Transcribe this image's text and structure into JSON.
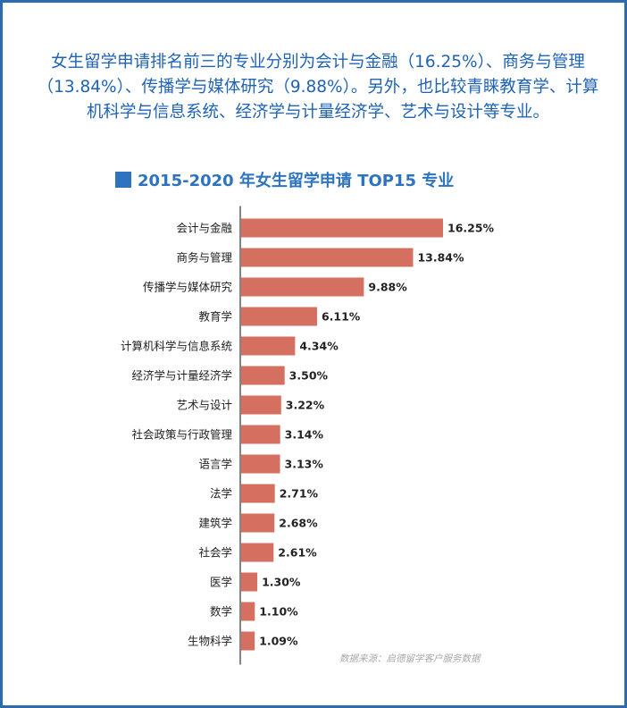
{
  "intro_text": "女生留学申请排名前三的专业分别为会计与金融（16.25%）、商务与管理（13.84%）、传播学与媒体研究（9.88%）。另外，也比较青睐教育学、计算机科学与信息系统、经济学与计量经济学、艺术与设计等专业。",
  "source_text": "数据来源：启德留学客户服务数据",
  "colors": {
    "bar": "#d56f60",
    "title": "#2d73c0",
    "intro": "#1f63b5",
    "frame": "#2b6cb0"
  },
  "chart_data": {
    "type": "bar",
    "orientation": "horizontal",
    "title": "2015-2020 年女生留学申请 TOP15 专业",
    "categories": [
      "会计与金融",
      "商务与管理",
      "传播学与媒体研究",
      "教育学",
      "计算机科学与信息系统",
      "经济学与计量经济学",
      "艺术与设计",
      "社会政策与行政管理",
      "语言学",
      "法学",
      "建筑学",
      "社会学",
      "医学",
      "数学",
      "生物科学"
    ],
    "values": [
      16.25,
      13.84,
      9.88,
      6.11,
      4.34,
      3.5,
      3.22,
      3.14,
      3.13,
      2.71,
      2.68,
      2.61,
      1.3,
      1.1,
      1.09
    ],
    "value_labels": [
      "16.25%",
      "13.84%",
      "9.88%",
      "6.11%",
      "4.34%",
      "3.50%",
      "3.22%",
      "3.14%",
      "3.13%",
      "2.71%",
      "2.68%",
      "2.61%",
      "1.30%",
      "1.10%",
      "1.09%"
    ],
    "unit": "%",
    "xlabel": "",
    "ylabel": "",
    "grid": false,
    "legend": "none"
  }
}
